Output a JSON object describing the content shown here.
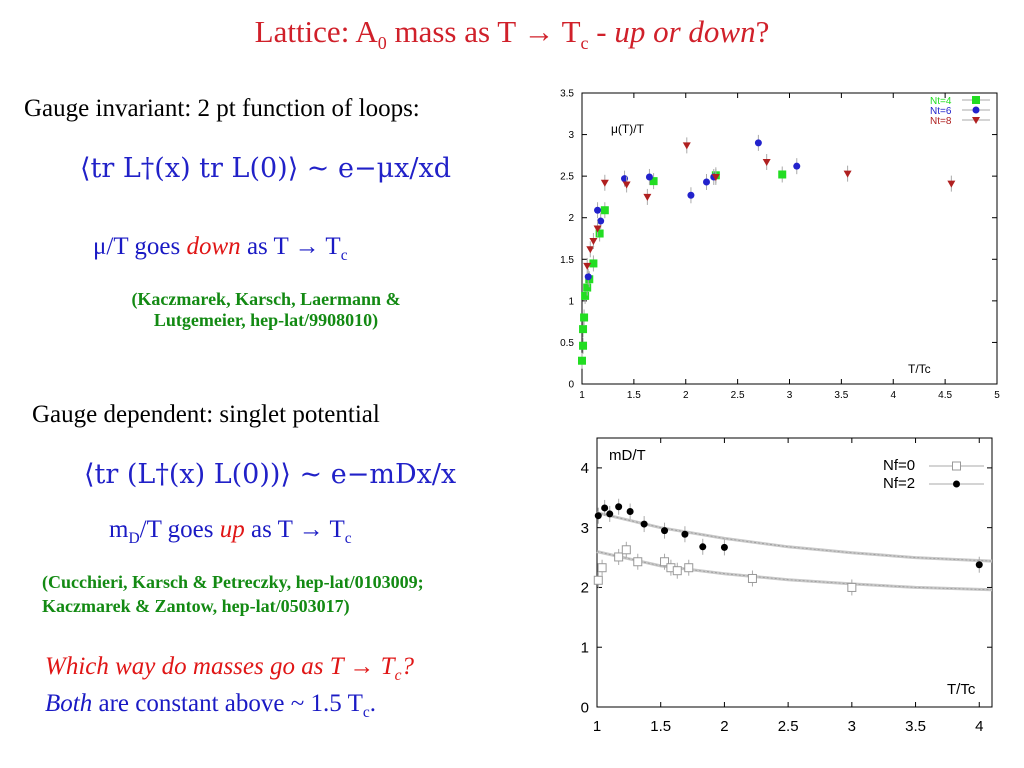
{
  "title": {
    "prefix": "Lattice: A",
    "sub0": "0",
    "mid": " mass as T → T",
    "subc": "c",
    "dash": " - ",
    "emph": "up or down",
    "q": "?"
  },
  "section1": {
    "heading": "Gauge invariant: 2 pt function of loops:",
    "formula": "⟨tr L†(x) tr L(0)⟩ ~ e−μx/xd",
    "statement": {
      "pre": "μ/T goes ",
      "emph": "down",
      "post": " as T → T",
      "sub": "c"
    },
    "reference": [
      "(Kaczmarek, Karsch, Laermann &",
      "Lutgemeier, hep-lat/9908010)"
    ]
  },
  "section2": {
    "heading": "Gauge dependent: singlet potential",
    "formula": "⟨tr (L†(x) L(0))⟩ ~ e−mDx/x",
    "statement": {
      "pre": "m",
      "presub": "D",
      "mid": "/T goes ",
      "emph": "up",
      "post": " as T → T",
      "sub": "c"
    },
    "reference": [
      "(Cucchieri, Karsch & Petreczky, hep-lat/0103009;",
      "Kaczmarek & Zantow, hep-lat/0503017)"
    ]
  },
  "conclusion": {
    "line1": {
      "text": "Which way do masses go as T → T",
      "sub": "c",
      "end": "?"
    },
    "line2": {
      "emph": "Both",
      "text": " are constant above ~ 1.5 T",
      "sub": "c",
      "end": "."
    }
  },
  "colors": {
    "title": "#d0202a",
    "blue": "#1a1ac4",
    "red": "#e01616",
    "green": "#138a13",
    "nt4": "#22dd22",
    "nt6": "#2222cc",
    "nt8": "#b02020"
  },
  "chart_data": [
    {
      "type": "scatter",
      "title": "μ(T)/T",
      "xlabel": "T/Tc",
      "ylabel": "",
      "xlim": [
        1,
        5
      ],
      "ylim": [
        0,
        3.5
      ],
      "xticks": [
        "1",
        "1.5",
        "2",
        "2.5",
        "3",
        "3.5",
        "4",
        "4.5",
        "5"
      ],
      "yticks": [
        "0",
        "0.5",
        "1",
        "1.5",
        "2",
        "2.5",
        "3",
        "3.5"
      ],
      "legend_position": "top-right",
      "series": [
        {
          "name": "Nt=4",
          "marker": "square",
          "color": "#22dd22",
          "x": [
            1.0,
            1.01,
            1.01,
            1.02,
            1.03,
            1.05,
            1.07,
            1.11,
            1.17,
            1.22,
            1.69,
            2.29,
            2.93
          ],
          "y": [
            0.28,
            0.46,
            0.66,
            0.8,
            1.06,
            1.16,
            1.26,
            1.45,
            1.81,
            2.09,
            2.44,
            2.51,
            2.52
          ]
        },
        {
          "name": "Nt=6",
          "marker": "circle",
          "color": "#2222cc",
          "x": [
            1.06,
            1.15,
            1.18,
            1.41,
            1.65,
            2.05,
            2.2,
            2.27,
            2.7,
            3.07
          ],
          "y": [
            1.29,
            2.09,
            1.96,
            2.47,
            2.49,
            2.27,
            2.43,
            2.49,
            2.9,
            2.62
          ]
        },
        {
          "name": "Nt=8",
          "marker": "triangle",
          "color": "#b02020",
          "x": [
            1.05,
            1.08,
            1.11,
            1.15,
            1.22,
            1.43,
            1.63,
            2.01,
            2.29,
            2.78,
            3.56,
            4.56
          ],
          "y": [
            1.42,
            1.62,
            1.72,
            1.87,
            2.42,
            2.4,
            2.25,
            2.87,
            2.49,
            2.67,
            2.53,
            2.41
          ]
        }
      ]
    },
    {
      "type": "scatter",
      "title": "mD/T",
      "xlabel": "T/Tc",
      "ylabel": "",
      "xlim": [
        1,
        4.1
      ],
      "ylim": [
        0,
        4.5
      ],
      "xticks": [
        "1",
        "1.5",
        "2",
        "2.5",
        "3",
        "3.5",
        "4"
      ],
      "yticks": [
        "0",
        "1",
        "2",
        "3",
        "4"
      ],
      "legend_position": "top-right",
      "series": [
        {
          "name": "Nf=0",
          "marker": "open-square",
          "color": "#999999",
          "x": [
            1.01,
            1.04,
            1.17,
            1.23,
            1.32,
            1.53,
            1.58,
            1.63,
            1.72,
            2.22,
            3.0
          ],
          "y": [
            2.12,
            2.33,
            2.51,
            2.63,
            2.43,
            2.43,
            2.33,
            2.28,
            2.33,
            2.15,
            2.0
          ]
        },
        {
          "name": "Nf=2",
          "marker": "circle",
          "color": "#000000",
          "x": [
            1.01,
            1.06,
            1.1,
            1.17,
            1.26,
            1.37,
            1.53,
            1.69,
            1.83,
            2.0,
            4.0
          ],
          "y": [
            3.2,
            3.33,
            3.23,
            3.35,
            3.27,
            3.06,
            2.95,
            2.89,
            2.68,
            2.67,
            2.38
          ]
        }
      ],
      "curves": [
        {
          "x": [
            1,
            1.5,
            2,
            2.5,
            3,
            3.5,
            4.1
          ],
          "y": [
            3.25,
            3.0,
            2.82,
            2.68,
            2.58,
            2.5,
            2.44
          ]
        },
        {
          "x": [
            1,
            1.5,
            2,
            2.5,
            3,
            3.5,
            4.1
          ],
          "y": [
            2.6,
            2.36,
            2.23,
            2.13,
            2.06,
            2.0,
            1.96
          ]
        }
      ]
    }
  ]
}
